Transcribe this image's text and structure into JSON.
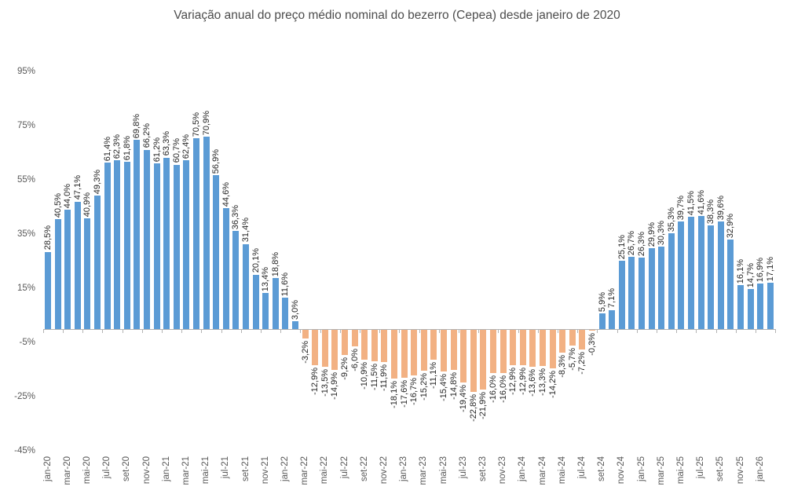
{
  "chart_data": {
    "type": "bar",
    "title": "Variação anual do preço médio nominal do bezerro (Cepea) desde janeiro de 2020",
    "xlabel": "",
    "ylabel": "",
    "ylim": [
      -45,
      95
    ],
    "grid": false,
    "legend": false,
    "positive_color": "#5B9BD5",
    "negative_color": "#F2B183",
    "axis_color": "#B3B3B3",
    "y_tick_labels": [
      "95%",
      "75%",
      "55%",
      "35%",
      "15%",
      "-5%",
      "-25%",
      "-45%"
    ],
    "x_tick_labels": [
      "jan-20",
      "mar-20",
      "mai-20",
      "jul-20",
      "set-20",
      "nov-20",
      "jan-21",
      "mar-21",
      "mai-21",
      "jul-21",
      "set-21",
      "nov-21",
      "jan-22",
      "mar-22",
      "mai-22",
      "jul-22",
      "set-22",
      "nov-22",
      "jan-23",
      "mar-23",
      "mai-23",
      "jul-23",
      "set-23",
      "nov-23",
      "jan-24",
      "mar-24",
      "mai-24",
      "jul-24",
      "set-24",
      "nov-24",
      "jan-25",
      "mar-25",
      "mai-25",
      "jul-25",
      "set-25",
      "nov-25",
      "jan-26"
    ],
    "x_tick_interval": 2,
    "values": [
      28.5,
      40.5,
      44.0,
      47.1,
      40.9,
      49.3,
      61.4,
      62.3,
      61.8,
      69.8,
      66.2,
      61.2,
      63.3,
      60.7,
      62.4,
      70.5,
      70.9,
      56.9,
      44.6,
      36.3,
      31.4,
      20.1,
      13.4,
      18.8,
      11.6,
      3.0,
      -3.2,
      -12.9,
      -13.5,
      -14.9,
      -9.2,
      -6.0,
      -10.9,
      -11.5,
      -11.9,
      -18.1,
      -17.6,
      -16.7,
      -15.2,
      -11.1,
      -15.4,
      -14.8,
      -19.4,
      -22.8,
      -21.9,
      -16.0,
      -16.0,
      -12.9,
      -12.9,
      -13.6,
      -13.3,
      -14.2,
      -8.3,
      -5.7,
      -7.2,
      -0.3,
      5.9,
      7.1,
      25.1,
      26.7,
      26.3,
      29.9,
      30.3,
      35.3,
      39.7,
      41.5,
      41.6,
      38.3,
      39.6,
      32.9,
      16.1,
      14.7,
      16.9,
      17.1
    ],
    "bar_labels": [
      "28,5%",
      "40,5%",
      "44,0%",
      "47,1%",
      "40,9%",
      "49,3%",
      "61,4%",
      "62,3%",
      "61,8%",
      "69,8%",
      "66,2%",
      "61,2%",
      "63,3%",
      "60,7%",
      "62,4%",
      "70,5%",
      "70,9%",
      "56,9%",
      "44,6%",
      "36,3%",
      "31,4%",
      "20,1%",
      "13,4%",
      "18,8%",
      "11,6%",
      "3,0%",
      "-3,2%",
      "-12,9%",
      "-13,5%",
      "-14,9%",
      "-9,2%",
      "-6,0%",
      "-10,9%",
      "-11,5%",
      "-11,9%",
      "-18,1%",
      "-17,6%",
      "-16,7%",
      "-15,2%",
      "-11,1%",
      "-15,4%",
      "-14,8%",
      "-19,4%",
      "-22,8%",
      "-21,9%",
      "-16,0%",
      "-16,0%",
      "-12,9%",
      "-12,9%",
      "-13,6%",
      "-13,3%",
      "-14,2%",
      "-8,3%",
      "-5,7%",
      "-7,2%",
      "-0,3%",
      "5,9%",
      "7,1%",
      "25,1%",
      "26,7%",
      "26,3%",
      "29,9%",
      "30,3%",
      "35,3%",
      "39,7%",
      "41,5%",
      "41,6%",
      "38,3%",
      "39,6%",
      "32,9%",
      "16,1%",
      "14,7%",
      "16,9%",
      "17,1%"
    ]
  }
}
